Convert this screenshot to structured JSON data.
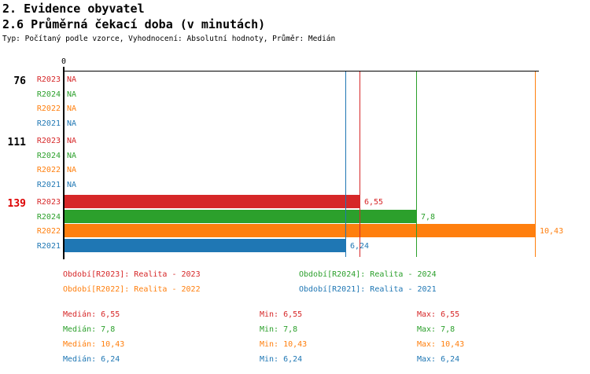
{
  "header": {
    "title1": "2. Evidence obyvatel",
    "title2": "2.6 Průměrná čekací doba (v minutách)",
    "subtitle": "Typ: Počítaný podle vzorce, Vyhodnocení: Absolutní hodnoty, Průměr: Medián"
  },
  "colors": {
    "R2023": "#d62728",
    "R2024": "#2ca02c",
    "R2022": "#ff7f0e",
    "R2021": "#1f77b4",
    "group_highlight": "#dd0000",
    "axis": "#000000"
  },
  "chart_data": {
    "type": "bar",
    "orientation": "horizontal",
    "x_axis": {
      "zero_label": "0",
      "min": 0,
      "max": 10.55,
      "gridlines": false
    },
    "series": [
      {
        "name": "R2023",
        "color": "#d62728"
      },
      {
        "name": "R2024",
        "color": "#2ca02c"
      },
      {
        "name": "R2022",
        "color": "#ff7f0e"
      },
      {
        "name": "R2021",
        "color": "#1f77b4"
      }
    ],
    "groups": [
      {
        "label": "76",
        "label_color": "#000000",
        "rows": [
          {
            "series": "R2023",
            "value": null,
            "display": "NA"
          },
          {
            "series": "R2024",
            "value": null,
            "display": "NA"
          },
          {
            "series": "R2022",
            "value": null,
            "display": "NA"
          },
          {
            "series": "R2021",
            "value": null,
            "display": "NA"
          }
        ]
      },
      {
        "label": "111",
        "label_color": "#000000",
        "rows": [
          {
            "series": "R2023",
            "value": null,
            "display": "NA"
          },
          {
            "series": "R2024",
            "value": null,
            "display": "NA"
          },
          {
            "series": "R2022",
            "value": null,
            "display": "NA"
          },
          {
            "series": "R2021",
            "value": null,
            "display": "NA"
          }
        ]
      },
      {
        "label": "139",
        "label_color": "#dd0000",
        "rows": [
          {
            "series": "R2023",
            "value": 6.55,
            "display": "6,55"
          },
          {
            "series": "R2024",
            "value": 7.8,
            "display": "7,8"
          },
          {
            "series": "R2022",
            "value": 10.43,
            "display": "10,43"
          },
          {
            "series": "R2021",
            "value": 6.24,
            "display": "6,24"
          }
        ]
      }
    ],
    "reference_lines": [
      {
        "series": "R2021",
        "value": 6.24
      },
      {
        "series": "R2023",
        "value": 6.55
      },
      {
        "series": "R2024",
        "value": 7.8
      },
      {
        "series": "R2022",
        "value": 10.43
      }
    ]
  },
  "legend": [
    {
      "series": "R2023",
      "label": "Období[R2023]: Realita - 2023"
    },
    {
      "series": "R2024",
      "label": "Období[R2024]: Realita - 2024"
    },
    {
      "series": "R2022",
      "label": "Období[R2022]: Realita - 2022"
    },
    {
      "series": "R2021",
      "label": "Období[R2021]: Realita - 2021"
    }
  ],
  "stats": [
    {
      "series": "R2023",
      "median": "Medián: 6,55",
      "min": "Min: 6,55",
      "max": "Max: 6,55"
    },
    {
      "series": "R2024",
      "median": "Medián: 7,8",
      "min": "Min: 7,8",
      "max": "Max: 7,8"
    },
    {
      "series": "R2022",
      "median": "Medián: 10,43",
      "min": "Min: 10,43",
      "max": "Max: 10,43"
    },
    {
      "series": "R2021",
      "median": "Medián: 6,24",
      "min": "Min: 6,24",
      "max": "Max: 6,24"
    }
  ]
}
